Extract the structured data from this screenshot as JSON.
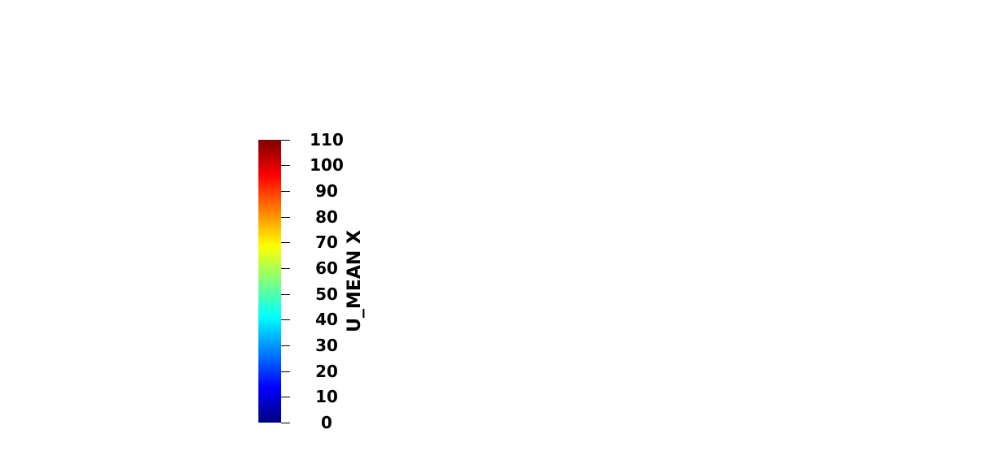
{
  "colorbar": {
    "title": "U_MEAN X",
    "ticks": [
      "0",
      "10",
      "20",
      "30",
      "40",
      "50",
      "60",
      "70",
      "80",
      "90",
      "100",
      "110"
    ],
    "colormap": [
      "#00007f",
      "#0000ff",
      "#007fff",
      "#00ffff",
      "#7fff7f",
      "#ffff00",
      "#ff7f00",
      "#ff0000",
      "#7f0000"
    ]
  }
}
